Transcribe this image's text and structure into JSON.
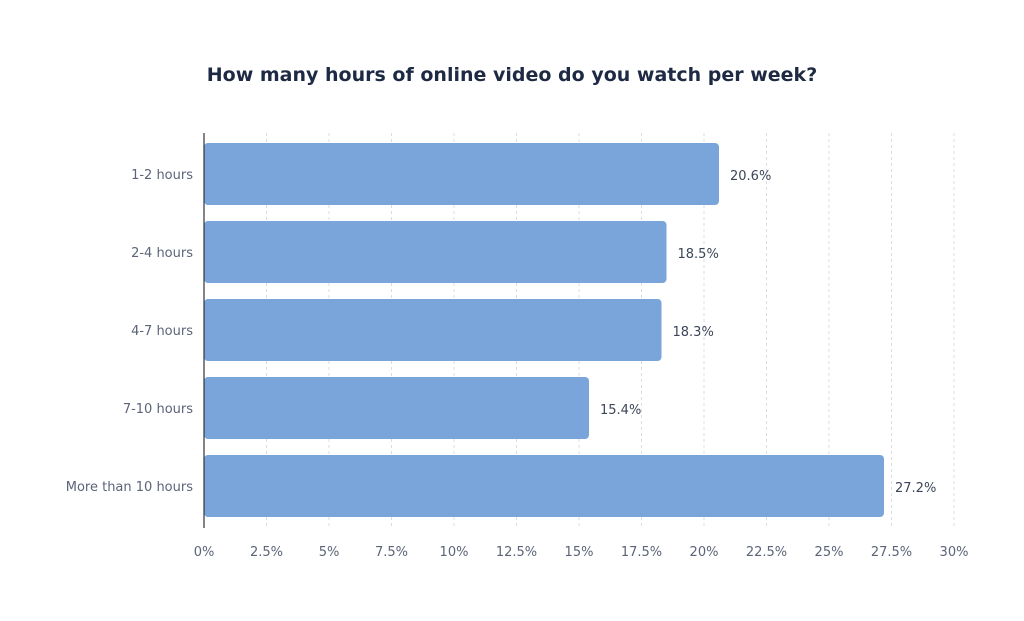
{
  "chart_data": {
    "type": "bar",
    "orientation": "horizontal",
    "title": "How many hours of online video do you watch per week?",
    "categories": [
      "1-2 hours",
      "2-4 hours",
      "4-7 hours",
      "7-10 hours",
      "More than 10 hours"
    ],
    "values": [
      20.6,
      18.5,
      18.3,
      15.4,
      27.2
    ],
    "value_labels": [
      "20.6%",
      "18.5%",
      "18.3%",
      "15.4%",
      "27.2%"
    ],
    "xlim": [
      0,
      30
    ],
    "x_ticks": [
      0,
      2.5,
      5,
      7.5,
      10,
      12.5,
      15,
      17.5,
      20,
      22.5,
      25,
      27.5,
      30
    ],
    "x_tick_labels": [
      "0%",
      "2.5%",
      "5%",
      "7.5%",
      "10%",
      "12.5%",
      "15%",
      "17.5%",
      "20%",
      "22.5%",
      "25%",
      "27.5%",
      "30%"
    ],
    "xlabel": "",
    "ylabel": "",
    "grid": "vertical dashed",
    "legend": "none",
    "colors": {
      "bar": "#7aa5da",
      "grid": "#d9dce3",
      "axis": "#333333"
    }
  }
}
